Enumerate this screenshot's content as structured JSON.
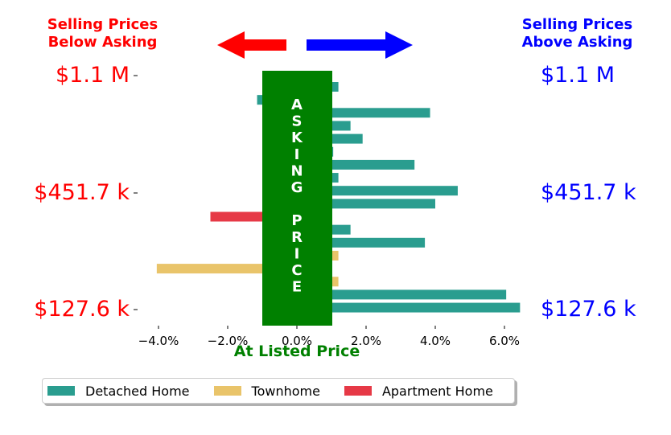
{
  "header": {
    "left_line1": "Selling Prices",
    "left_line2": "Below Asking",
    "right_line1": "Selling Prices",
    "right_line2": "Above Asking",
    "left_color": "#ff0000",
    "right_color": "#0000ff"
  },
  "price_labels": {
    "top": "$1.1 M",
    "middle": "$451.7 k",
    "bottom": "$127.6 k",
    "left_color": "#ff0000",
    "right_color": "#0000ff"
  },
  "asking_box": {
    "word1": "ASKING",
    "word2": "PRICE",
    "color": "#008000"
  },
  "chart_data": {
    "type": "bar",
    "orientation": "horizontal",
    "xlabel": "At Listed Price",
    "xlabel_color": "#008000",
    "xlim": [
      -4.6,
      6.4
    ],
    "xticks": [
      -4,
      -2,
      0,
      2,
      4,
      6
    ],
    "xtick_labels": [
      "−4.0%",
      "−2.0%",
      "0.0%",
      "2.0%",
      "4.0%",
      "6.0%"
    ],
    "series": [
      {
        "name": "Detached Home",
        "color": "#2a9d8f"
      },
      {
        "name": "Townhome",
        "color": "#e9c46a"
      },
      {
        "name": "Apartment Home",
        "color": "#e63946"
      }
    ],
    "bars": [
      {
        "type": "Detached Home",
        "value": 1.2
      },
      {
        "type": "Detached Home",
        "value": -1.15
      },
      {
        "type": "Detached Home",
        "value": 3.85
      },
      {
        "type": "Detached Home",
        "value": 1.55
      },
      {
        "type": "Detached Home",
        "value": 1.9
      },
      {
        "type": "Detached Home",
        "value": 1.05
      },
      {
        "type": "Detached Home",
        "value": 3.4
      },
      {
        "type": "Detached Home",
        "value": 1.2
      },
      {
        "type": "Detached Home",
        "value": 4.65
      },
      {
        "type": "Detached Home",
        "value": 4.0
      },
      {
        "type": "Apartment Home",
        "value": -2.5
      },
      {
        "type": "Detached Home",
        "value": 1.55
      },
      {
        "type": "Detached Home",
        "value": 3.7
      },
      {
        "type": "Townhome",
        "value": 1.2
      },
      {
        "type": "Townhome",
        "value": -4.05
      },
      {
        "type": "Townhome",
        "value": 1.2
      },
      {
        "type": "Detached Home",
        "value": 6.05
      },
      {
        "type": "Detached Home",
        "value": 6.45
      }
    ]
  }
}
